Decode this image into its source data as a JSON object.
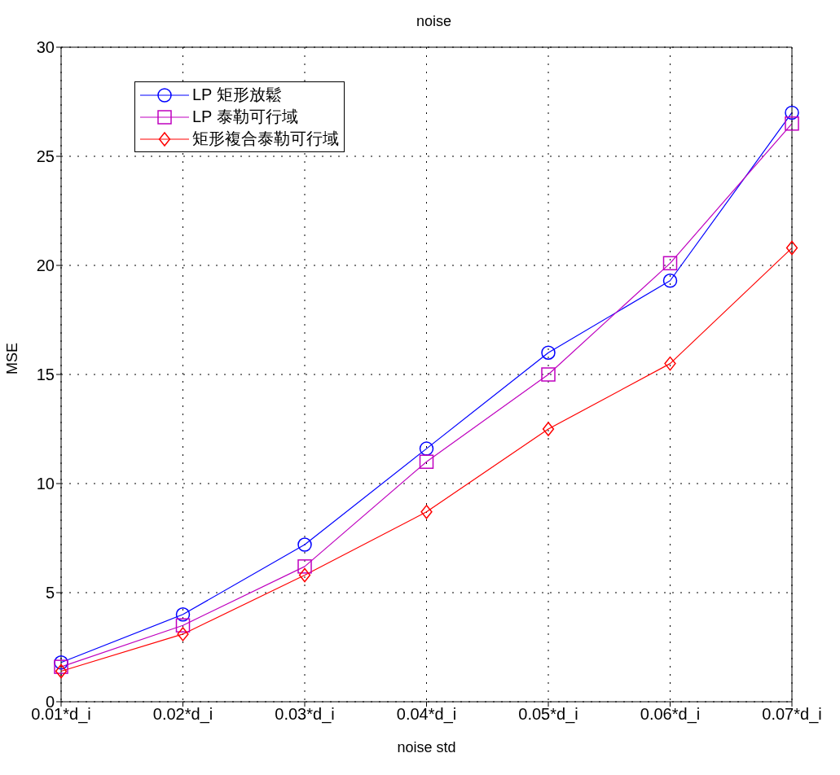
{
  "chart_data": {
    "type": "line",
    "title": "noise",
    "xlabel": "noise std",
    "ylabel": "MSE",
    "categories": [
      "0.01*d_i",
      "0.02*d_i",
      "0.03*d_i",
      "0.04*d_i",
      "0.05*d_i",
      "0.06*d_i",
      "0.07*d_i"
    ],
    "series": [
      {
        "name": "LP 矩形放鬆",
        "color": "#0000ff",
        "marker": "circle",
        "values": [
          1.8,
          4.0,
          7.2,
          11.6,
          16.0,
          19.3,
          27.0
        ]
      },
      {
        "name": "LP 泰勒可行域",
        "color": "#bf00bf",
        "marker": "square",
        "values": [
          1.6,
          3.5,
          6.2,
          11.0,
          15.0,
          20.1,
          26.5
        ]
      },
      {
        "name": "矩形複合泰勒可行域",
        "color": "#ff0000",
        "marker": "diamond",
        "values": [
          1.4,
          3.1,
          5.8,
          8.7,
          12.5,
          15.5,
          20.8
        ]
      }
    ],
    "ylim": [
      0,
      30
    ],
    "yticks": [
      0,
      5,
      10,
      15,
      20,
      25,
      30
    ],
    "grid": true,
    "legend": "top left",
    "line_style": "solid"
  }
}
